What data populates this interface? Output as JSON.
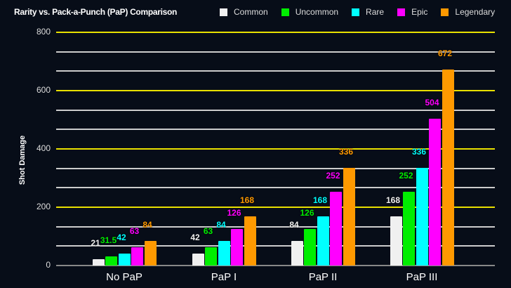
{
  "chart_data": {
    "type": "bar",
    "title": "Rarity vs. Pack-a-Punch (PaP) Comparison",
    "xlabel": "",
    "ylabel": "Shot Damage",
    "ylim": [
      0,
      800
    ],
    "yticks": [
      0,
      200,
      400,
      600,
      800
    ],
    "grid": true,
    "legend_position": "top-right",
    "categories": [
      "No PaP",
      "PaP I",
      "PaP II",
      "PaP III"
    ],
    "series": [
      {
        "name": "Common",
        "color": "#f0f0f0",
        "values": [
          21,
          42,
          84,
          168
        ]
      },
      {
        "name": "Uncommon",
        "color": "#00ee00",
        "values": [
          31.5,
          63,
          126,
          252
        ]
      },
      {
        "name": "Rare",
        "color": "#00ffff",
        "values": [
          42,
          84,
          168,
          336
        ]
      },
      {
        "name": "Epic",
        "color": "#ff00ff",
        "values": [
          63,
          126,
          252,
          504
        ]
      },
      {
        "name": "Legendary",
        "color": "#ff9900",
        "values": [
          84,
          168,
          336,
          672
        ]
      }
    ],
    "value_labels": [
      [
        "21",
        "42",
        "84",
        "168"
      ],
      [
        "31.5",
        "63",
        "126",
        "252"
      ],
      [
        "42",
        "84",
        "168",
        "336"
      ],
      [
        "63",
        "126",
        "252",
        "504"
      ],
      [
        "84",
        "168",
        "336",
        "672"
      ]
    ]
  },
  "tick_labels": [
    "0",
    "200",
    "400",
    "600",
    "800"
  ]
}
